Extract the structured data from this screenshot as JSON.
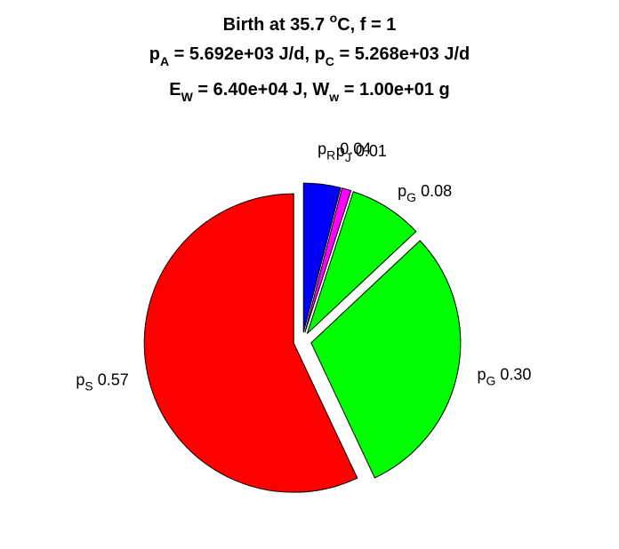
{
  "chart_data": {
    "type": "pie",
    "title_lines": [
      [
        {
          "t": "Birth at 35.7 "
        },
        {
          "t": "o",
          "sup": true
        },
        {
          "t": "C, f = 1"
        }
      ],
      [
        {
          "t": "p"
        },
        {
          "t": "A",
          "sub": true
        },
        {
          "t": " = 5.692e+03 J/d, p"
        },
        {
          "t": "C",
          "sub": true
        },
        {
          "t": " = 5.268e+03 J/d"
        }
      ],
      [
        {
          "t": "E"
        },
        {
          "t": "W",
          "sub": true
        },
        {
          "t": " = 6.40e+04 J, W"
        },
        {
          "t": "w",
          "sub": true
        },
        {
          "t": " = 1.00e+01 g"
        }
      ]
    ],
    "slices": [
      {
        "id": "pR",
        "main": "p",
        "sub": "R",
        "value": 0.04,
        "value_label": "0.04",
        "color": "#0000ff"
      },
      {
        "id": "pJ",
        "main": "p",
        "sub": "J",
        "value": 0.01,
        "value_label": "0.01",
        "color": "#ff00ff"
      },
      {
        "id": "pG-small",
        "main": "p",
        "sub": "G",
        "value": 0.08,
        "value_label": "0.08",
        "color": "#00ff00"
      },
      {
        "id": "pG-large",
        "main": "p",
        "sub": "G",
        "value": 0.3,
        "value_label": "0.30",
        "color": "#00ff00"
      },
      {
        "id": "pS",
        "main": "p",
        "sub": "S",
        "value": 0.57,
        "value_label": "0.57",
        "color": "#ff0000"
      }
    ]
  }
}
